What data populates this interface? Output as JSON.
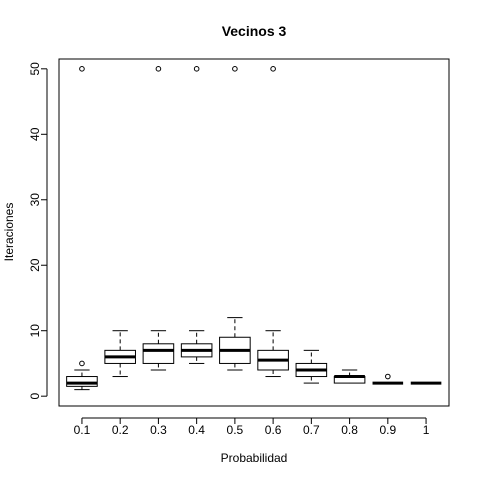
{
  "chart_data": {
    "type": "boxplot",
    "title": "Vecinos 3",
    "xlabel": "Probabilidad",
    "ylabel": "Iteraciones",
    "categories": [
      "0.1",
      "0.2",
      "0.3",
      "0.4",
      "0.5",
      "0.6",
      "0.7",
      "0.8",
      "0.9",
      "1"
    ],
    "ylim": [
      -1.5,
      51.5
    ],
    "yticks": [
      0,
      10,
      20,
      30,
      40,
      50
    ],
    "grid": false,
    "boxes": [
      {
        "category": "0.1",
        "min": 1,
        "q1": 1.5,
        "median": 2,
        "q3": 3,
        "max": 4,
        "outliers": [
          5,
          50
        ]
      },
      {
        "category": "0.2",
        "min": 3,
        "q1": 5,
        "median": 6,
        "q3": 7,
        "max": 10,
        "outliers": []
      },
      {
        "category": "0.3",
        "min": 4,
        "q1": 5,
        "median": 7,
        "q3": 8,
        "max": 10,
        "outliers": [
          50
        ]
      },
      {
        "category": "0.4",
        "min": 5,
        "q1": 6,
        "median": 7,
        "q3": 8,
        "max": 10,
        "outliers": [
          50
        ]
      },
      {
        "category": "0.5",
        "min": 4,
        "q1": 5,
        "median": 7,
        "q3": 9,
        "max": 12,
        "outliers": [
          50
        ]
      },
      {
        "category": "0.6",
        "min": 3,
        "q1": 4,
        "median": 5.5,
        "q3": 7,
        "max": 10,
        "outliers": [
          50
        ]
      },
      {
        "category": "0.7",
        "min": 2,
        "q1": 3,
        "median": 4,
        "q3": 5,
        "max": 7,
        "outliers": []
      },
      {
        "category": "0.8",
        "min": 2,
        "q1": 2,
        "median": 3,
        "q3": 3,
        "max": 4,
        "outliers": []
      },
      {
        "category": "0.9",
        "min": 2,
        "q1": 2,
        "median": 2,
        "q3": 2,
        "max": 2,
        "outliers": [
          3
        ]
      },
      {
        "category": "1",
        "min": 2,
        "q1": 2,
        "median": 2,
        "q3": 2,
        "max": 2,
        "outliers": []
      }
    ]
  }
}
